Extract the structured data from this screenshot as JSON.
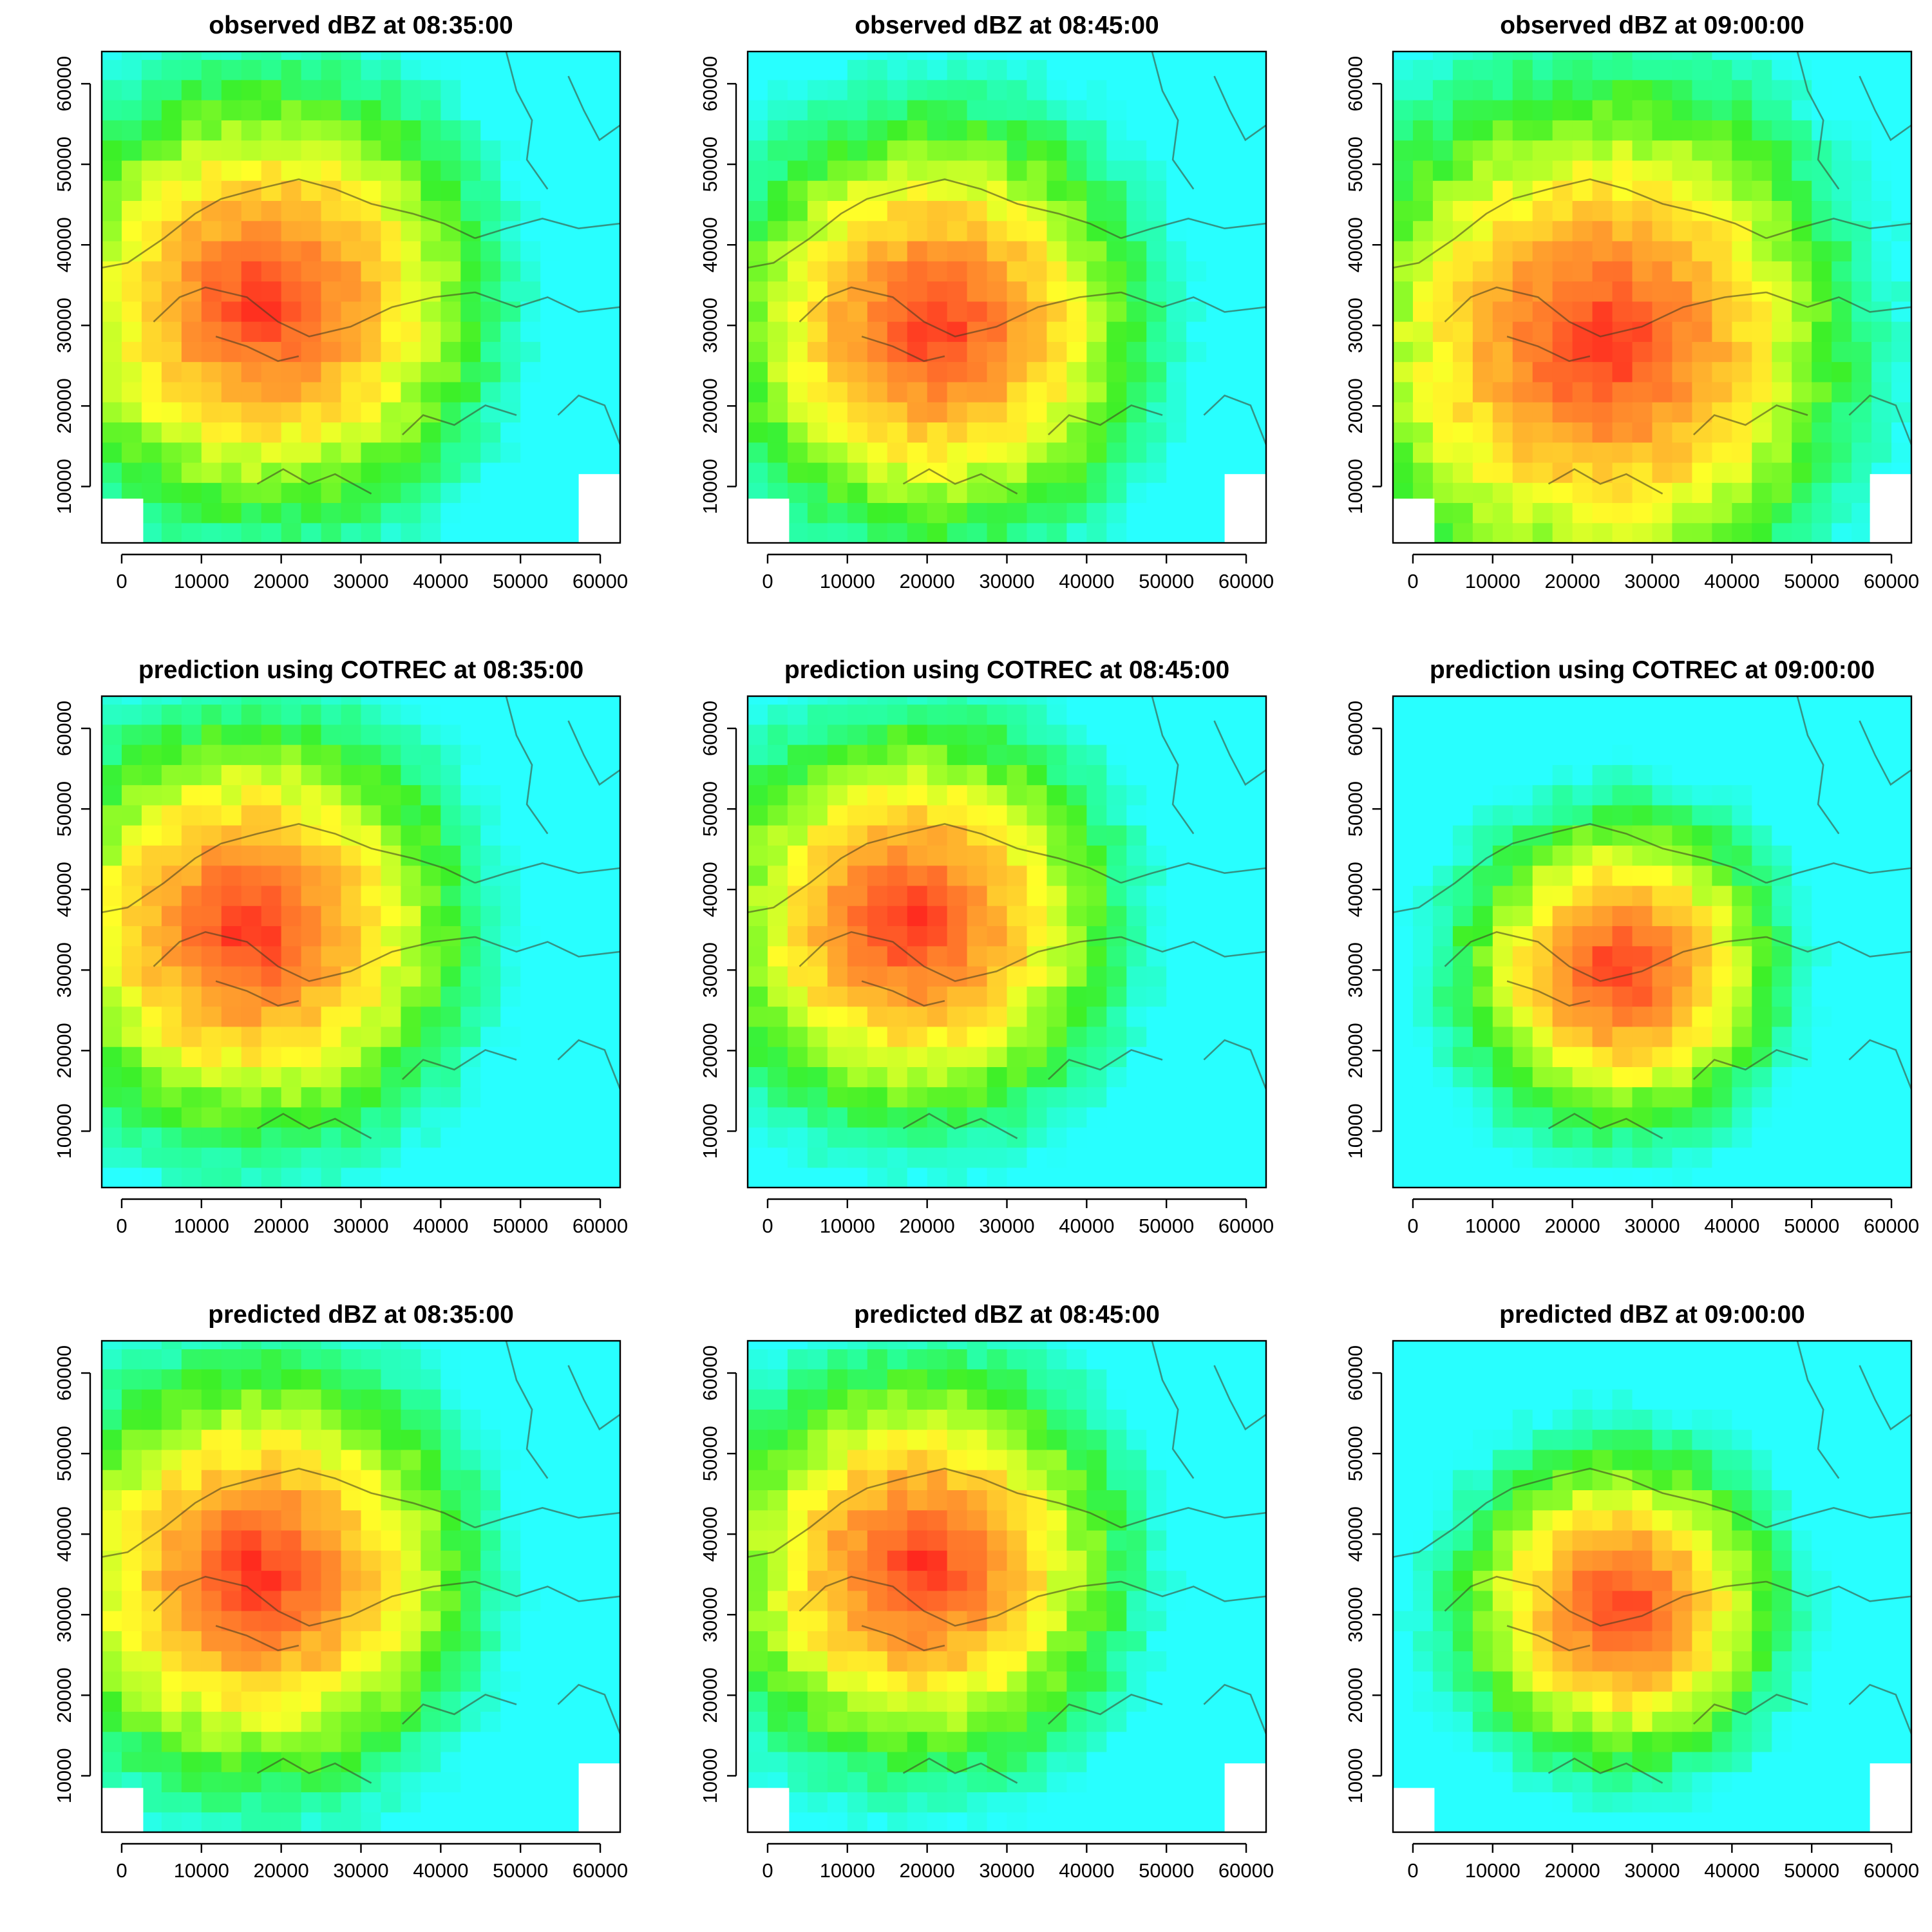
{
  "chart_data": [
    {
      "type": "heatmap",
      "title": "observed dBZ at 08:35:00",
      "kind": "observed",
      "time": "08:35:00",
      "center": [
        18000,
        33000
      ],
      "spread": 21000,
      "xlim": [
        -2500,
        62500
      ],
      "ylim": [
        3000,
        64000
      ],
      "x_ticks": [
        0,
        10000,
        20000,
        30000,
        40000,
        50000,
        60000
      ],
      "y_ticks": [
        10000,
        20000,
        30000,
        40000,
        50000,
        60000
      ],
      "grid": false
    },
    {
      "type": "heatmap",
      "title": "observed dBZ at 08:45:00",
      "kind": "observed",
      "time": "08:45:00",
      "center": [
        21000,
        30000
      ],
      "spread": 20000,
      "xlim": [
        -2500,
        62500
      ],
      "ylim": [
        3000,
        64000
      ],
      "x_ticks": [
        0,
        10000,
        20000,
        30000,
        40000,
        50000,
        60000
      ],
      "y_ticks": [
        10000,
        20000,
        30000,
        40000,
        50000,
        60000
      ],
      "grid": false
    },
    {
      "type": "heatmap",
      "title": "observed dBZ at 09:00:00",
      "kind": "observed",
      "time": "09:00:00",
      "center": [
        24000,
        28000
      ],
      "spread": 25000,
      "xlim": [
        -2500,
        62500
      ],
      "ylim": [
        3000,
        64000
      ],
      "x_ticks": [
        0,
        10000,
        20000,
        30000,
        40000,
        50000,
        60000
      ],
      "y_ticks": [
        10000,
        20000,
        30000,
        40000,
        50000,
        60000
      ],
      "grid": false
    },
    {
      "type": "heatmap",
      "title": "prediction using COTREC at 08:35:00",
      "kind": "cotrec",
      "time": "08:35:00",
      "center": [
        16000,
        35000
      ],
      "spread": 20000,
      "xlim": [
        -2500,
        62500
      ],
      "ylim": [
        3000,
        64000
      ],
      "x_ticks": [
        0,
        10000,
        20000,
        30000,
        40000,
        50000,
        60000
      ],
      "y_ticks": [
        10000,
        20000,
        30000,
        40000,
        50000,
        60000
      ],
      "grid": false
    },
    {
      "type": "heatmap",
      "title": "prediction using COTREC at 08:45:00",
      "kind": "cotrec",
      "time": "08:45:00",
      "center": [
        18000,
        36000
      ],
      "spread": 19000,
      "xlim": [
        -2500,
        62500
      ],
      "ylim": [
        3000,
        64000
      ],
      "x_ticks": [
        0,
        10000,
        20000,
        30000,
        40000,
        50000,
        60000
      ],
      "y_ticks": [
        10000,
        20000,
        30000,
        40000,
        50000,
        60000
      ],
      "grid": false
    },
    {
      "type": "heatmap",
      "title": "prediction using COTREC at 09:00:00",
      "kind": "cotrec",
      "time": "09:00:00",
      "center": [
        26000,
        30000
      ],
      "spread": 15000,
      "xlim": [
        -2500,
        62500
      ],
      "ylim": [
        3000,
        64000
      ],
      "x_ticks": [
        0,
        10000,
        20000,
        30000,
        40000,
        50000,
        60000
      ],
      "y_ticks": [
        10000,
        20000,
        30000,
        40000,
        50000,
        60000
      ],
      "grid": false
    },
    {
      "type": "heatmap",
      "title": "predicted dBZ at 08:35:00",
      "kind": "predicted",
      "time": "08:35:00",
      "center": [
        17000,
        35000
      ],
      "spread": 20000,
      "xlim": [
        -2500,
        62500
      ],
      "ylim": [
        3000,
        64000
      ],
      "x_ticks": [
        0,
        10000,
        20000,
        30000,
        40000,
        50000,
        60000
      ],
      "y_ticks": [
        10000,
        20000,
        30000,
        40000,
        50000,
        60000
      ],
      "grid": false
    },
    {
      "type": "heatmap",
      "title": "predicted dBZ at 08:45:00",
      "kind": "predicted",
      "time": "08:45:00",
      "center": [
        19000,
        36000
      ],
      "spread": 19000,
      "xlim": [
        -2500,
        62500
      ],
      "ylim": [
        3000,
        64000
      ],
      "x_ticks": [
        0,
        10000,
        20000,
        30000,
        40000,
        50000,
        60000
      ],
      "y_ticks": [
        10000,
        20000,
        30000,
        40000,
        50000,
        60000
      ],
      "grid": false
    },
    {
      "type": "heatmap",
      "title": "predicted dBZ at 09:00:00",
      "kind": "predicted",
      "time": "09:00:00",
      "center": [
        26000,
        31000
      ],
      "spread": 15000,
      "xlim": [
        -2500,
        62500
      ],
      "ylim": [
        3000,
        64000
      ],
      "x_ticks": [
        0,
        10000,
        20000,
        30000,
        40000,
        50000,
        60000
      ],
      "y_ticks": [
        10000,
        20000,
        30000,
        40000,
        50000,
        60000
      ],
      "grid": false
    }
  ],
  "colors": {
    "scale": [
      "#ff0000",
      "#ff8000",
      "#ffff00",
      "#00ff00",
      "#00ffff"
    ]
  }
}
